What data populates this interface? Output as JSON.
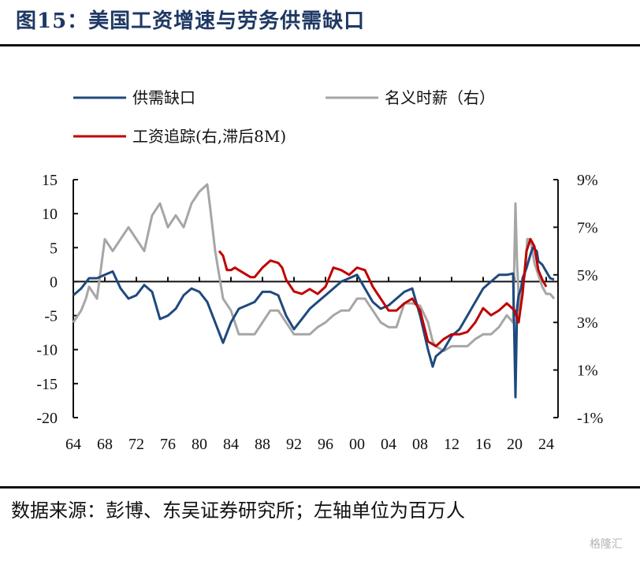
{
  "figure": {
    "title": "图15：美国工资增速与劳务供需缺口",
    "source": "数据来源：彭博、东吴证券研究所；左轴单位为百万人"
  },
  "watermark": "格隆汇",
  "chart_data": {
    "type": "line",
    "title": "",
    "x_tick_labels": [
      "64",
      "68",
      "72",
      "76",
      "80",
      "84",
      "88",
      "92",
      "96",
      "00",
      "04",
      "08",
      "12",
      "16",
      "20",
      "24"
    ],
    "x_tick_years": [
      1964,
      1968,
      1972,
      1976,
      1980,
      1984,
      1988,
      1992,
      1996,
      2000,
      2004,
      2008,
      2012,
      2016,
      2020,
      2024
    ],
    "xlim": [
      1964,
      2025.5
    ],
    "left_axis": {
      "ylim": [
        -20,
        15
      ],
      "ticks": [
        15,
        10,
        5,
        0,
        -5,
        -10,
        -15,
        -20
      ],
      "tick_labels": [
        "15",
        "10",
        "5",
        "0",
        "-5",
        "-10",
        "-15",
        "-20"
      ]
    },
    "right_axis": {
      "ylim": [
        -1,
        9
      ],
      "ticks": [
        9,
        7,
        5,
        3,
        1,
        -1
      ],
      "tick_labels": [
        "9%",
        "7%",
        "5%",
        "3%",
        "1%",
        "-1%"
      ]
    },
    "legend": [
      "供需缺口",
      "名义时薪（右）",
      "工资追踪(右,滞后8M)"
    ],
    "series": [
      {
        "name": "供需缺口",
        "axis": "left",
        "color": "#1f497d",
        "x": [
          1964,
          1965,
          1966,
          1967,
          1968,
          1969,
          1970,
          1971,
          1972,
          1973,
          1974,
          1975,
          1976,
          1977,
          1978,
          1979,
          1980,
          1981,
          1982,
          1983,
          1984,
          1985,
          1986,
          1987,
          1988,
          1989,
          1990,
          1991,
          1992,
          1993,
          1994,
          1995,
          1996,
          1997,
          1998,
          1999,
          2000,
          2001,
          2002,
          2003,
          2004,
          2005,
          2006,
          2007,
          2008,
          2009,
          2009.6,
          2010,
          2011,
          2012,
          2013,
          2014,
          2015,
          2016,
          2017,
          2018,
          2019,
          2019.8,
          2020.1,
          2020.3,
          2020.5,
          2020.8,
          2021,
          2021.5,
          2022,
          2022.3,
          2022.8,
          2023,
          2023.5,
          2024,
          2024.5,
          2025
        ],
        "values": [
          -2,
          -1,
          0.5,
          0.5,
          1,
          1.5,
          -1,
          -2.5,
          -2,
          -0.5,
          -1.5,
          -5.5,
          -5,
          -4,
          -2,
          -1,
          -1.5,
          -3,
          -6,
          -9,
          -6,
          -4,
          -3.5,
          -3,
          -1.5,
          -1.5,
          -2,
          -5,
          -7,
          -5.5,
          -4,
          -3,
          -2,
          -1,
          0,
          0.5,
          1,
          -1,
          -3,
          -4,
          -3.5,
          -2.5,
          -1.5,
          -1,
          -5,
          -10,
          -12.5,
          -11,
          -10,
          -8,
          -7,
          -5,
          -3,
          -1,
          0,
          1,
          1,
          1.2,
          -17,
          -4,
          -2,
          -1,
          0.5,
          2,
          4,
          5,
          4.5,
          3,
          2.5,
          1.5,
          0.5,
          0.3
        ]
      },
      {
        "name": "名义时薪（右）",
        "axis": "right",
        "color": "#a6a6a6",
        "x": [
          1964,
          1965,
          1965.6,
          1966,
          1967,
          1968,
          1969,
          1970,
          1971,
          1972,
          1973,
          1974,
          1975,
          1976,
          1977,
          1978,
          1979,
          1980,
          1981,
          1981.3,
          1982,
          1983,
          1984,
          1985,
          1986,
          1987,
          1988,
          1989,
          1990,
          1991,
          1992,
          1993,
          1994,
          1995,
          1996,
          1997,
          1998,
          1999,
          2000,
          2001,
          2002,
          2003,
          2004,
          2005,
          2006,
          2007,
          2008,
          2009,
          2009.6,
          2010,
          2011,
          2012,
          2013,
          2014,
          2015,
          2016,
          2017,
          2018,
          2019,
          2019.8,
          2020.1,
          2020.3,
          2020.6,
          2020.9,
          2021.3,
          2021.6,
          2022,
          2022.5,
          2023,
          2023.5,
          2024,
          2024.5,
          2025
        ],
        "values": [
          3,
          3.5,
          4,
          4.5,
          4,
          6.5,
          6,
          6.5,
          7,
          6.5,
          6,
          7.5,
          8,
          7,
          7.5,
          7,
          8,
          8.5,
          8.8,
          8,
          6,
          4,
          3.5,
          2.5,
          2.5,
          2.5,
          3,
          3.5,
          3.5,
          3,
          2.5,
          2.5,
          2.5,
          2.8,
          3,
          3.3,
          3.5,
          3.5,
          4,
          4,
          3.5,
          3,
          2.8,
          2.8,
          3.8,
          3.8,
          3.7,
          3,
          2.2,
          2,
          1.8,
          2,
          2,
          2,
          2.3,
          2.5,
          2.5,
          2.8,
          3.3,
          3,
          8,
          5.5,
          3.5,
          4.5,
          5,
          6.5,
          6.5,
          5.5,
          5,
          4.5,
          4.2,
          4.2,
          4
        ]
      },
      {
        "name": "工资追踪(右,滞后8M)",
        "axis": "right",
        "color": "#c00000",
        "x": [
          1982.5,
          1983,
          1983.5,
          1984,
          1984.5,
          1985,
          1986,
          1986.5,
          1987,
          1988,
          1989,
          1990,
          1990.5,
          1991,
          1992,
          1993,
          1994,
          1995,
          1996,
          1997,
          1998,
          1999,
          2000,
          2001,
          2002,
          2003,
          2004,
          2005,
          2006,
          2007,
          2008,
          2009,
          2010,
          2011,
          2012,
          2013,
          2014,
          2015,
          2016,
          2017,
          2018,
          2019,
          2020,
          2020.5,
          2021,
          2021.5,
          2022,
          2022.5,
          2023,
          2023.5,
          2024
        ],
        "values": [
          6,
          5.8,
          5.2,
          5.2,
          5.3,
          5.2,
          5,
          4.9,
          4.9,
          5.3,
          5.6,
          5.5,
          5.3,
          4.8,
          4.3,
          4.2,
          4.4,
          4.2,
          4.5,
          5.3,
          5.2,
          5,
          5.3,
          5.2,
          4.5,
          4,
          3.5,
          3.5,
          3.8,
          4,
          3.5,
          2.2,
          2,
          2.3,
          2.5,
          2.5,
          2.6,
          3,
          3.6,
          3.3,
          3.5,
          3.8,
          3.5,
          3,
          4.2,
          6,
          6.5,
          6.2,
          5.2,
          4.8,
          4.5
        ]
      }
    ]
  }
}
